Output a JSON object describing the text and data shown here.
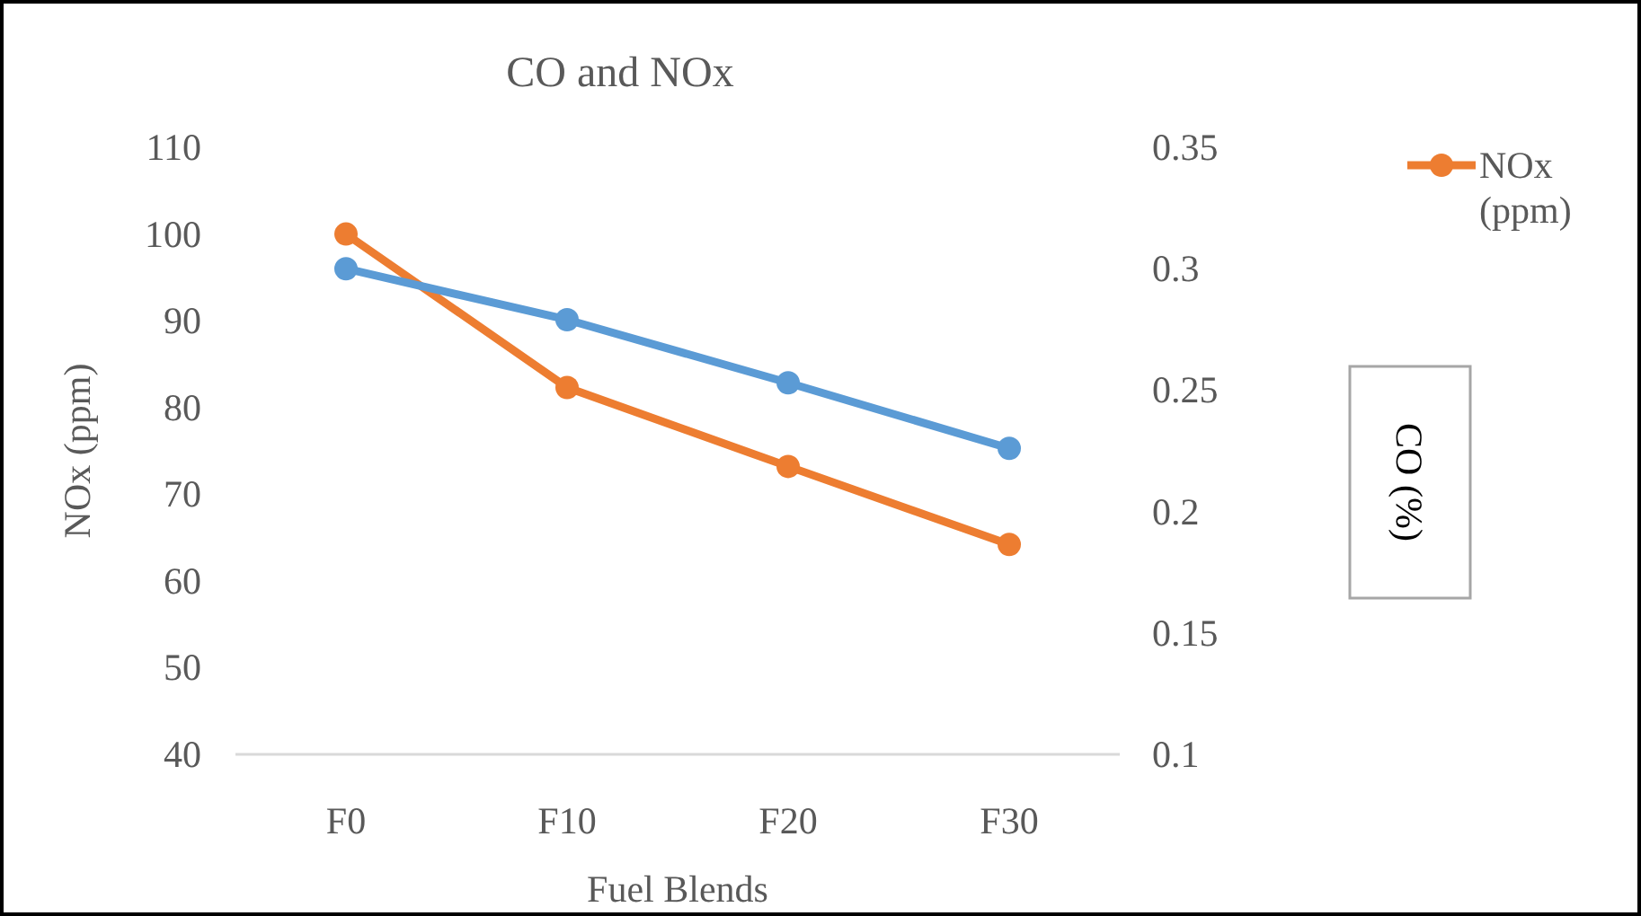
{
  "chart_data": {
    "type": "line",
    "title": "CO and NOx",
    "xlabel": "Fuel Blends",
    "ylabel": "NOx (ppm)",
    "y2label": "CO (%)",
    "categories": [
      "F0",
      "F10",
      "F20",
      "F30"
    ],
    "series": [
      {
        "name": "NOx (ppm)",
        "color": "#ed7d31",
        "values": [
          100,
          82.3,
          73.2,
          64.2
        ]
      },
      {
        "color": "#5b9bd5",
        "axis": "y2",
        "values": [
          0.3,
          0.279,
          0.253,
          0.226
        ]
      }
    ],
    "ylim": [
      40,
      110
    ],
    "yticks": [
      40,
      50,
      60,
      70,
      80,
      90,
      100,
      110
    ],
    "y2lim": [
      0.1,
      0.35
    ],
    "y2ticks": [
      0.1,
      0.15,
      0.2,
      0.25,
      0.3,
      0.35
    ],
    "marker": "circle",
    "line_style": "solid",
    "legend": "top right",
    "grid": false
  }
}
